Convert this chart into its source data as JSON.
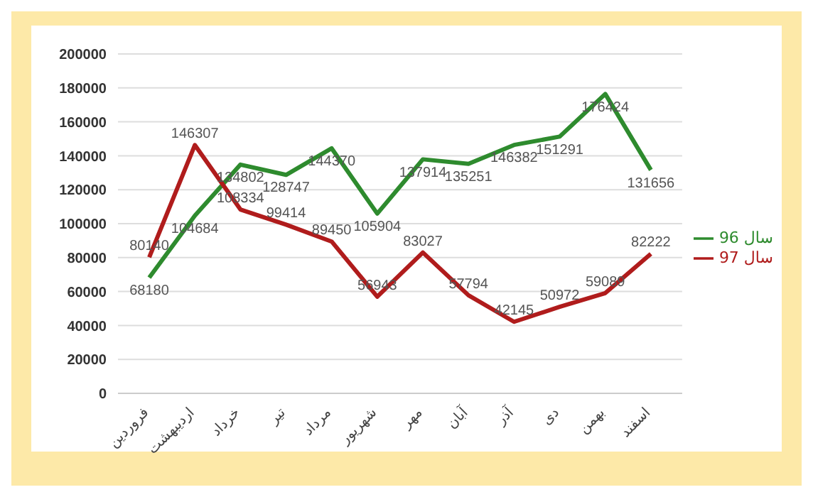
{
  "chart_data": {
    "type": "line",
    "categories": [
      "فروردین",
      "اردیبهشت",
      "خرداد",
      "تیر",
      "مرداد",
      "شهریور",
      "مهر",
      "آبان",
      "آذر",
      "دی",
      "بهمن",
      "اسفند"
    ],
    "series": [
      {
        "name": "سال 96",
        "color": "#2e8b2e",
        "values": [
          68180,
          104684,
          134802,
          128747,
          144370,
          105904,
          137914,
          135251,
          146382,
          151291,
          176424,
          131656
        ]
      },
      {
        "name": "سال 97",
        "color": "#b01c1c",
        "values": [
          80140,
          146307,
          108334,
          99414,
          89450,
          56943,
          83027,
          57794,
          42145,
          50972,
          59089,
          82222
        ]
      }
    ],
    "ylim": [
      0,
      200000
    ],
    "yticks": [
      0,
      20000,
      40000,
      60000,
      80000,
      100000,
      120000,
      140000,
      160000,
      180000,
      200000
    ],
    "grid": "y",
    "legend": "right",
    "data_labels": true,
    "marker": "none",
    "line_style": "solid"
  }
}
